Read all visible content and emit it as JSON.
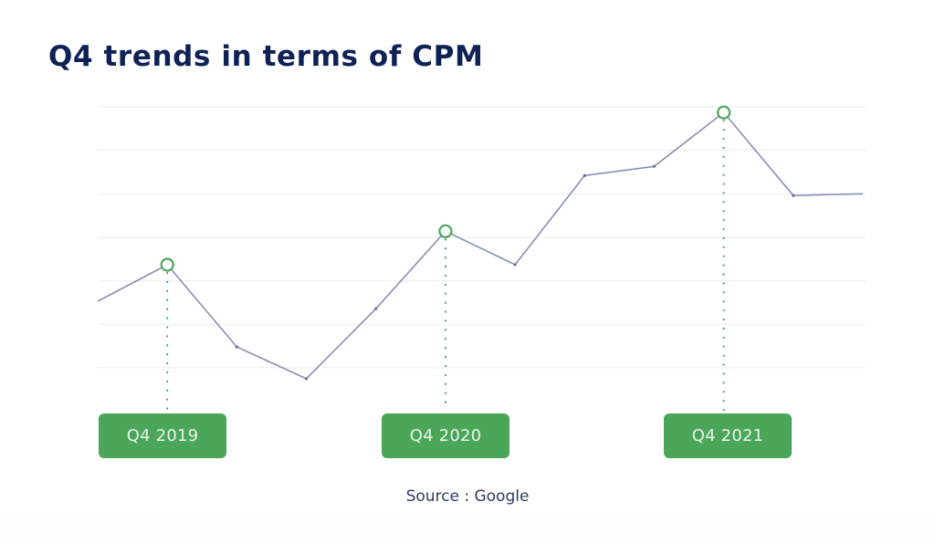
{
  "title": "Q4 trends in terms of CPM",
  "source": "Source : Google",
  "colors": {
    "title": "#0f2256",
    "line": "#8a90b5",
    "marker": "#4ca65a",
    "label_bg": "#4ca65a",
    "label_text": "#e8f5e9",
    "grid": "#f1f1f4",
    "source_text": "#2e3b63"
  },
  "labels": [
    {
      "text": "Q4 2019",
      "x_index": 1
    },
    {
      "text": "Q4 2020",
      "x_index": 5
    },
    {
      "text": "Q4 2021",
      "x_index": 9
    }
  ],
  "chart_data": {
    "type": "line",
    "title": "Q4 trends in terms of CPM",
    "xlabel": "",
    "ylabel": "",
    "source": "Source : Google",
    "grid": true,
    "gridlines": 7,
    "y_axis_labeled": false,
    "note": "Values are relative units read against unlabeled gridlines (bottom gridline = 0, top gridline = 6).",
    "ylim": [
      -0.5,
      6
    ],
    "x": [
      0,
      1,
      2,
      3,
      4,
      5,
      6,
      7,
      8,
      9,
      10,
      11
    ],
    "highlighted_points": [
      {
        "index": 1,
        "label": "Q4 2019",
        "value": 2.37
      },
      {
        "index": 5,
        "label": "Q4 2020",
        "value": 3.14
      },
      {
        "index": 9,
        "label": "Q4 2021",
        "value": 5.87
      }
    ],
    "series": [
      {
        "name": "CPM",
        "values": [
          1.53,
          2.37,
          0.48,
          -0.25,
          1.36,
          3.14,
          2.37,
          4.42,
          4.63,
          5.87,
          3.96,
          4.0
        ]
      }
    ]
  }
}
